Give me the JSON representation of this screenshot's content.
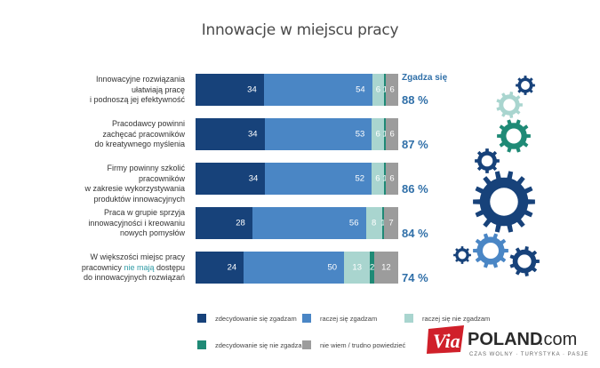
{
  "title": "Innowacje w miejscu pracy",
  "agree_header": "Zgadza się",
  "legend": [
    {
      "label": "zdecydowanie się zgadzam",
      "color": "#17427a"
    },
    {
      "label": "raczej się zgadzam",
      "color": "#4a86c5"
    },
    {
      "label": "raczej się nie zgadzam",
      "color": "#a9d5cf"
    },
    {
      "label": "zdecydowanie się nie zgadzam",
      "color": "#1f8a76"
    },
    {
      "label": "nie wiem / trudno powiedzieć",
      "color": "#9c9c9c"
    }
  ],
  "chart_data": {
    "type": "bar",
    "stacked": true,
    "orientation": "horizontal",
    "title": "Innowacje w miejscu pracy",
    "categories": [
      "Innowacyjne rozwiązania ułatwiają pracę i podnoszą jej efektywność",
      "Pracodawcy powinni zachęcać pracowników do kreatywnego myślenia",
      "Firmy powinny szkolić pracowników w zakresie wykorzystywania produktów innowacyjnych",
      "Praca w grupie sprzyja innowacyjności i kreowaniu nowych pomysłów",
      "W większości miejsc pracy pracownicy nie mają dostępu do innowacyjnych rozwiązań"
    ],
    "series": [
      {
        "name": "zdecydowanie się zgadzam",
        "values": [
          34,
          34,
          34,
          28,
          24
        ]
      },
      {
        "name": "raczej się zgadzam",
        "values": [
          54,
          53,
          52,
          56,
          50
        ]
      },
      {
        "name": "raczej się nie zgadzam",
        "values": [
          6,
          6,
          6,
          8,
          13
        ]
      },
      {
        "name": "zdecydowanie się nie zgadzam",
        "values": [
          1,
          1,
          1,
          1,
          2
        ]
      },
      {
        "name": "nie wiem / trudno powiedzieć",
        "values": [
          6,
          6,
          6,
          7,
          12
        ]
      }
    ],
    "agree_totals": [
      "88 %",
      "87 %",
      "86 %",
      "84 %",
      "74 %"
    ],
    "legend_position": "bottom"
  },
  "rows": [
    {
      "lines": [
        "Innowacyjne rozwiązania",
        "ułatwiają pracę",
        "i podnoszą jej efektywność"
      ]
    },
    {
      "lines": [
        "Pracodawcy powinni",
        "zachęcać pracowników",
        "do kreatywnego myślenia"
      ]
    },
    {
      "lines": [
        "Firmy powinny szkolić pracowników",
        "w zakresie wykorzystywania",
        "produktów innowacyjnych"
      ]
    },
    {
      "lines": [
        "Praca w grupie sprzyja",
        "innowacyjności i kreowaniu",
        "nowych pomysłów"
      ]
    },
    {
      "lines": [
        "W większości miejsc pracy",
        "pracownicy ",
        "nie mają",
        " dostępu",
        "do innowacyjnych rozwiązań"
      ]
    }
  ],
  "brand": {
    "via": "Via",
    "name": "POLAND",
    "suffix": ".com",
    "tagline": "CZAS WOLNY · TURYSTYKA · PASJE"
  }
}
